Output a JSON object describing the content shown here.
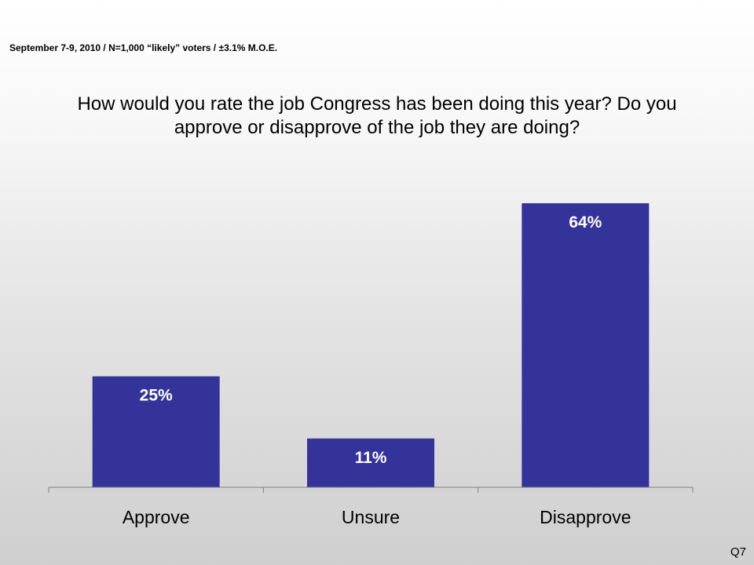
{
  "header": {
    "subtitle": "September 7-9, 2010 / N=1,000 “likely” voters / ±3.1% M.O.E.",
    "question_line1": "How would you rate the job Congress has been doing this year? Do you",
    "question_line2": "approve or disapprove of the job they are doing?"
  },
  "footer": {
    "question_number": "Q7"
  },
  "colors": {
    "bar": "#333399",
    "bar_label": "#ffffff",
    "axis": "#808080"
  },
  "chart_data": {
    "type": "bar",
    "title": "How would you rate the job Congress has been doing this year? Do you approve or disapprove of the job they are doing?",
    "categories": [
      "Approve",
      "Unsure",
      "Disapprove"
    ],
    "values": [
      25,
      11,
      64
    ],
    "value_labels": [
      "25%",
      "11%",
      "64%"
    ],
    "unit": "%",
    "ylim": [
      0,
      64
    ],
    "grid": false,
    "legend": "none",
    "xlabel": "",
    "ylabel": ""
  }
}
